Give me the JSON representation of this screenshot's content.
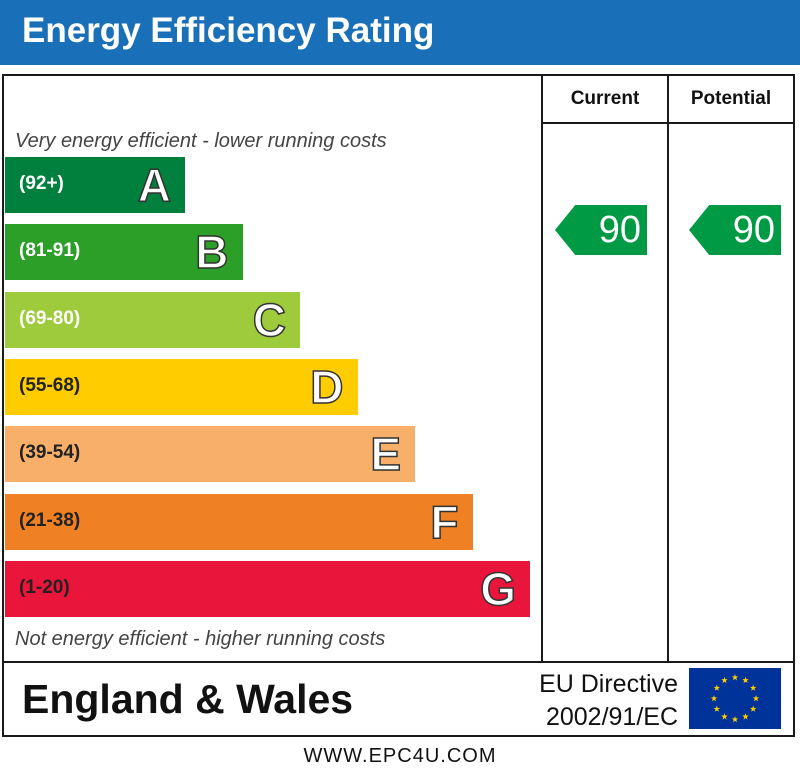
{
  "header": {
    "title": "Energy Efficiency Rating"
  },
  "columns": {
    "current": "Current",
    "potential": "Potential"
  },
  "notes": {
    "top": "Very energy efficient - lower running costs",
    "bottom": "Not energy efficient - higher running costs"
  },
  "chart_data": {
    "type": "bar",
    "title": "Energy Efficiency Rating",
    "categories": [
      "A",
      "B",
      "C",
      "D",
      "E",
      "F",
      "G"
    ],
    "bands": [
      {
        "letter": "A",
        "range": "(92+)",
        "color": "#007f3d"
      },
      {
        "letter": "B",
        "range": "(81-91)",
        "color": "#2c9f29"
      },
      {
        "letter": "C",
        "range": "(69-80)",
        "color": "#9dcb3c"
      },
      {
        "letter": "D",
        "range": "(55-68)",
        "color": "#ffcc00"
      },
      {
        "letter": "E",
        "range": "(39-54)",
        "color": "#f7af6a"
      },
      {
        "letter": "F",
        "range": "(21-38)",
        "color": "#ef8023"
      },
      {
        "letter": "G",
        "range": "(1-20)",
        "color": "#e9153b"
      }
    ],
    "current": 90,
    "potential": 90,
    "indicator_color": "#009a44"
  },
  "footer": {
    "region": "England & Wales",
    "eu_line1": "EU Directive",
    "eu_line2": "2002/91/EC",
    "flag_icon": "eu-flag-icon",
    "flag_color": "#003399",
    "star_color": "#ffcc00"
  },
  "website": "WWW.EPC4U.COM"
}
